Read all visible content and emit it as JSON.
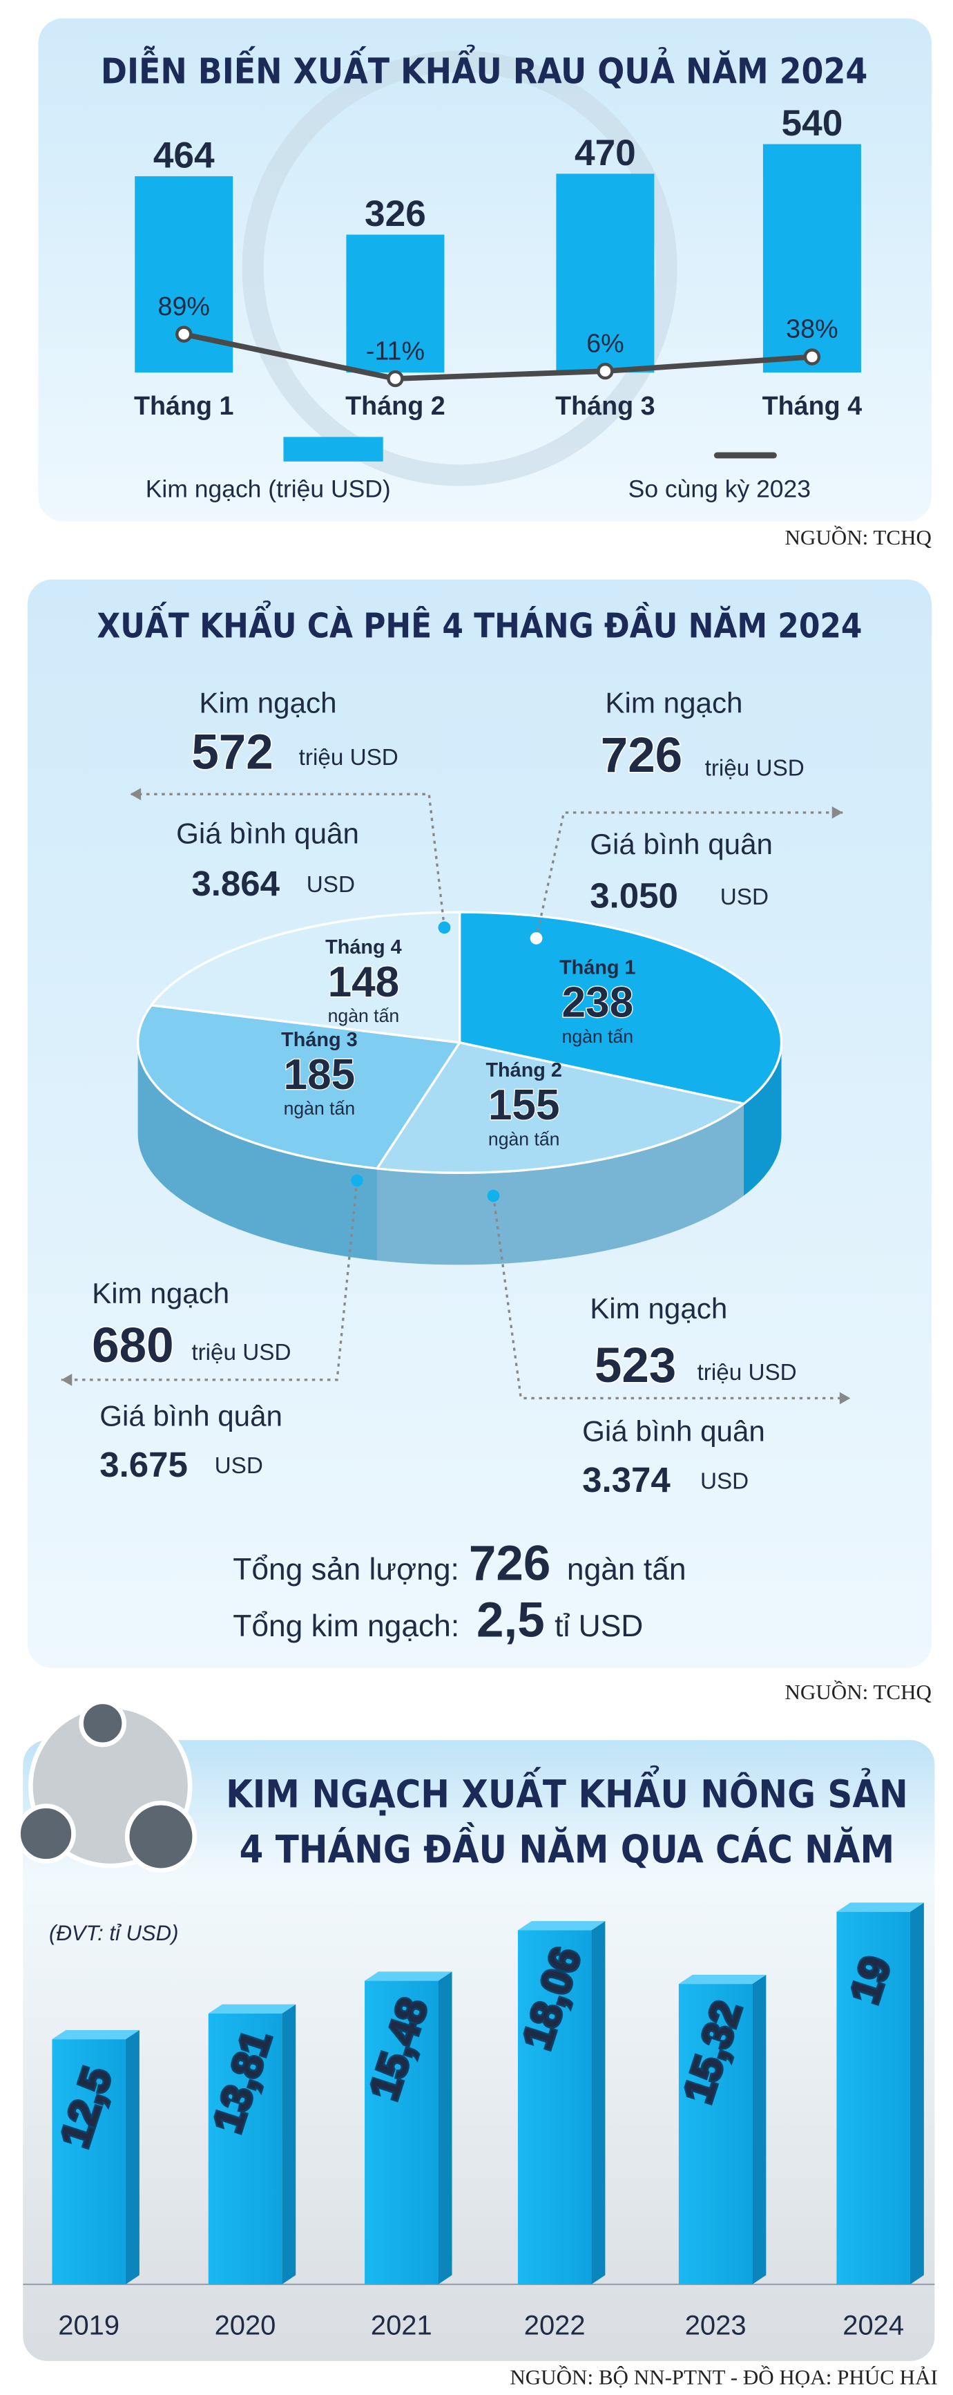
{
  "chart_data": [
    {
      "type": "combo",
      "title": "DIỄN BIẾN XUẤT KHẨU RAU QUẢ NĂM 2024",
      "categories": [
        "Tháng 1",
        "Tháng 2",
        "Tháng 3",
        "Tháng 4"
      ],
      "series": [
        {
          "name": "Kim ngạch (triệu USD)",
          "color": "#12b0ec",
          "values": [
            464,
            326,
            470,
            540
          ]
        },
        {
          "name": "So cùng kỳ 2023",
          "color": "#4a4a4a",
          "values": [
            89,
            -11,
            6,
            38
          ],
          "value_labels": [
            "89%",
            "-11%",
            "6%",
            "38%"
          ]
        }
      ],
      "source": "NGUỒN: TCHQ"
    },
    {
      "type": "pie",
      "title": "XUẤT KHẨU CÀ PHÊ 4 THÁNG ĐẦU NĂM 2024",
      "categories": [
        "Tháng 1",
        "Tháng 2",
        "Tháng 3",
        "Tháng 4"
      ],
      "values": [
        238,
        155,
        185,
        148
      ],
      "value_unit": "ngàn tấn",
      "colors": [
        "#12b0ec",
        "#a8dcf5",
        "#7fcdf0",
        "#d6effb"
      ],
      "revenue_label": "Kim ngạch",
      "revenue": [
        726,
        523,
        680,
        572
      ],
      "revenue_unit": "triệu USD",
      "price_label": "Giá bình quân",
      "prices": [
        "3.050",
        "3.374",
        "3.675",
        "3.864"
      ],
      "price_unit": "USD",
      "total_volume_label": "Tổng sản lượng:",
      "total_volume": 726,
      "total_volume_unit": "ngàn tấn",
      "total_value_label": "Tổng kim ngạch:",
      "total_value": "2,5",
      "total_value_unit": "tỉ USD",
      "source": "NGUỒN: TCHQ"
    },
    {
      "type": "bar",
      "title": [
        "KIM NGẠCH XUẤT KHẨU NÔNG SẢN",
        "4 THÁNG ĐẦU NĂM QUA CÁC NĂM"
      ],
      "unit_note": "(ĐVT: tỉ USD)",
      "categories": [
        "2019",
        "2020",
        "2021",
        "2022",
        "2023",
        "2024"
      ],
      "values": [
        12.5,
        13.81,
        15.48,
        18.06,
        15.32,
        19
      ],
      "value_labels": [
        "12,5",
        "13,81",
        "15,48",
        "18,06",
        "15,32",
        "19"
      ],
      "color": "#12b0ec",
      "source": "NGUỒN: BỘ NN-PTNT - ĐỒ HỌA: PHÚC HẢI"
    }
  ]
}
